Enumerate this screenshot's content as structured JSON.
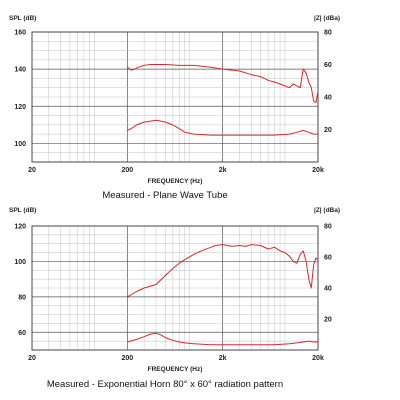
{
  "chart_data": [
    {
      "type": "line",
      "caption": "Measured - Plane Wave Tube",
      "xlabel": "FREQUENCY (Hz)",
      "ylabel_left": "SPL (dB)",
      "ylabel_right": "|Z| (dBa)",
      "x_scale": "log",
      "xlim": [
        20,
        20000
      ],
      "x_ticks": [
        "20",
        "200",
        "2k",
        "20k"
      ],
      "ylim": [
        90,
        160
      ],
      "y_ticks": [
        100,
        120,
        140,
        160
      ],
      "y2lim": [
        0,
        80
      ],
      "y2_ticks": [
        20,
        40,
        60,
        80
      ],
      "grid": true,
      "series": [
        {
          "axis": "left",
          "x": [
            200,
            220,
            240,
            260,
            300,
            350,
            400,
            500,
            700,
            1000,
            1500,
            2000,
            3000,
            4000,
            5000,
            6000,
            7000,
            8000,
            9000,
            10000,
            11000,
            12000,
            13000,
            14000,
            15000,
            16000,
            17000,
            18000,
            19000,
            20000
          ],
          "values": [
            141,
            139.5,
            140,
            141,
            142,
            142.5,
            142.5,
            142.5,
            142,
            142,
            141,
            140,
            139,
            137,
            136,
            134,
            133,
            132,
            131,
            130,
            132,
            131,
            130,
            140,
            138,
            133,
            130,
            123,
            122,
            128
          ]
        },
        {
          "axis": "left",
          "x": [
            200,
            220,
            250,
            300,
            350,
            400,
            450,
            500,
            600,
            700,
            800,
            1000,
            1500,
            2000,
            3000,
            5000,
            7000,
            10000,
            12000,
            14000,
            16000,
            18000,
            20000
          ],
          "values": [
            107,
            108,
            110,
            111.5,
            112,
            112.5,
            112,
            111.5,
            110,
            108,
            106,
            105,
            104.5,
            104.5,
            104.5,
            104.5,
            104.5,
            105,
            106,
            107,
            106,
            105,
            105
          ]
        }
      ]
    },
    {
      "type": "line",
      "caption": "Measured - Exponential Horn 80° x 60° radiation pattern",
      "xlabel": "FREQUENCY (Hz)",
      "ylabel_left": "SPL (dB)",
      "ylabel_right": "|Z| (dBa)",
      "x_scale": "log",
      "xlim": [
        20,
        20000
      ],
      "x_ticks": [
        "20",
        "200",
        "2k",
        "20k"
      ],
      "ylim": [
        50,
        120
      ],
      "y_ticks": [
        60,
        80,
        100,
        120
      ],
      "y2lim": [
        0,
        80
      ],
      "y2_ticks": [
        20,
        40,
        60,
        80
      ],
      "grid": true,
      "series": [
        {
          "axis": "left",
          "x": [
            200,
            250,
            300,
            400,
            500,
            600,
            700,
            800,
            1000,
            1200,
            1500,
            1700,
            2000,
            2500,
            3000,
            3500,
            4000,
            5000,
            6000,
            7000,
            8000,
            9000,
            10000,
            11000,
            12000,
            13000,
            14000,
            15000,
            16000,
            17000,
            18000,
            19000,
            20000
          ],
          "values": [
            80,
            83,
            85,
            87,
            92,
            96,
            99,
            101,
            104,
            106,
            108,
            109,
            109.5,
            108.5,
            109,
            108.5,
            109.5,
            109,
            107,
            108,
            106,
            105,
            103,
            100,
            99,
            104,
            106,
            100,
            90,
            85,
            98,
            102,
            101
          ]
        },
        {
          "axis": "left",
          "x": [
            200,
            250,
            300,
            350,
            400,
            450,
            500,
            600,
            700,
            800,
            1000,
            1500,
            2000,
            3000,
            5000,
            7000,
            10000,
            12000,
            14000,
            16000,
            18000,
            20000
          ],
          "values": [
            54.5,
            56,
            57.5,
            59,
            59.5,
            58.5,
            57,
            55.5,
            54.5,
            54,
            53.5,
            53,
            53,
            53,
            53,
            53,
            53.5,
            54,
            54.5,
            55,
            54.5,
            54.5
          ]
        }
      ]
    }
  ]
}
